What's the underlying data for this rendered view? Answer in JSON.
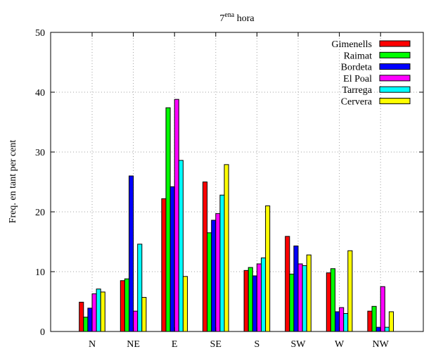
{
  "chart_data": {
    "type": "bar",
    "title": "7",
    "title_superscript": "ena",
    "title_suffix": "hora",
    "xlabel": "",
    "ylabel": "Freq. en tant per cent",
    "ylim": [
      0,
      50
    ],
    "yticks": [
      0,
      10,
      20,
      30,
      40,
      50
    ],
    "grid": true,
    "legend_position": "top-right",
    "categories": [
      "N",
      "NE",
      "E",
      "SE",
      "S",
      "SW",
      "W",
      "NW"
    ],
    "series": [
      {
        "name": "Gimenells",
        "color": "#ff0000",
        "values": [
          4.9,
          8.5,
          22.2,
          25.0,
          10.2,
          15.9,
          9.8,
          3.4
        ]
      },
      {
        "name": "Raimat",
        "color": "#00ff00",
        "values": [
          2.4,
          8.8,
          37.4,
          16.5,
          10.7,
          9.6,
          10.5,
          4.2
        ]
      },
      {
        "name": "Bordeta",
        "color": "#0000ff",
        "values": [
          3.9,
          26.0,
          24.2,
          18.6,
          9.3,
          14.3,
          3.3,
          0.7
        ]
      },
      {
        "name": "El Poal",
        "color": "#ff00ff",
        "values": [
          6.3,
          3.4,
          38.8,
          19.7,
          11.3,
          11.3,
          4.0,
          7.5
        ]
      },
      {
        "name": "Tarrega",
        "color": "#00ffff",
        "values": [
          7.1,
          14.6,
          28.6,
          22.8,
          12.3,
          11.0,
          3.0,
          0.7
        ]
      },
      {
        "name": "Cervera",
        "color": "#ffff00",
        "values": [
          6.6,
          5.7,
          9.2,
          27.9,
          21.0,
          12.8,
          13.5,
          3.3
        ]
      }
    ]
  }
}
